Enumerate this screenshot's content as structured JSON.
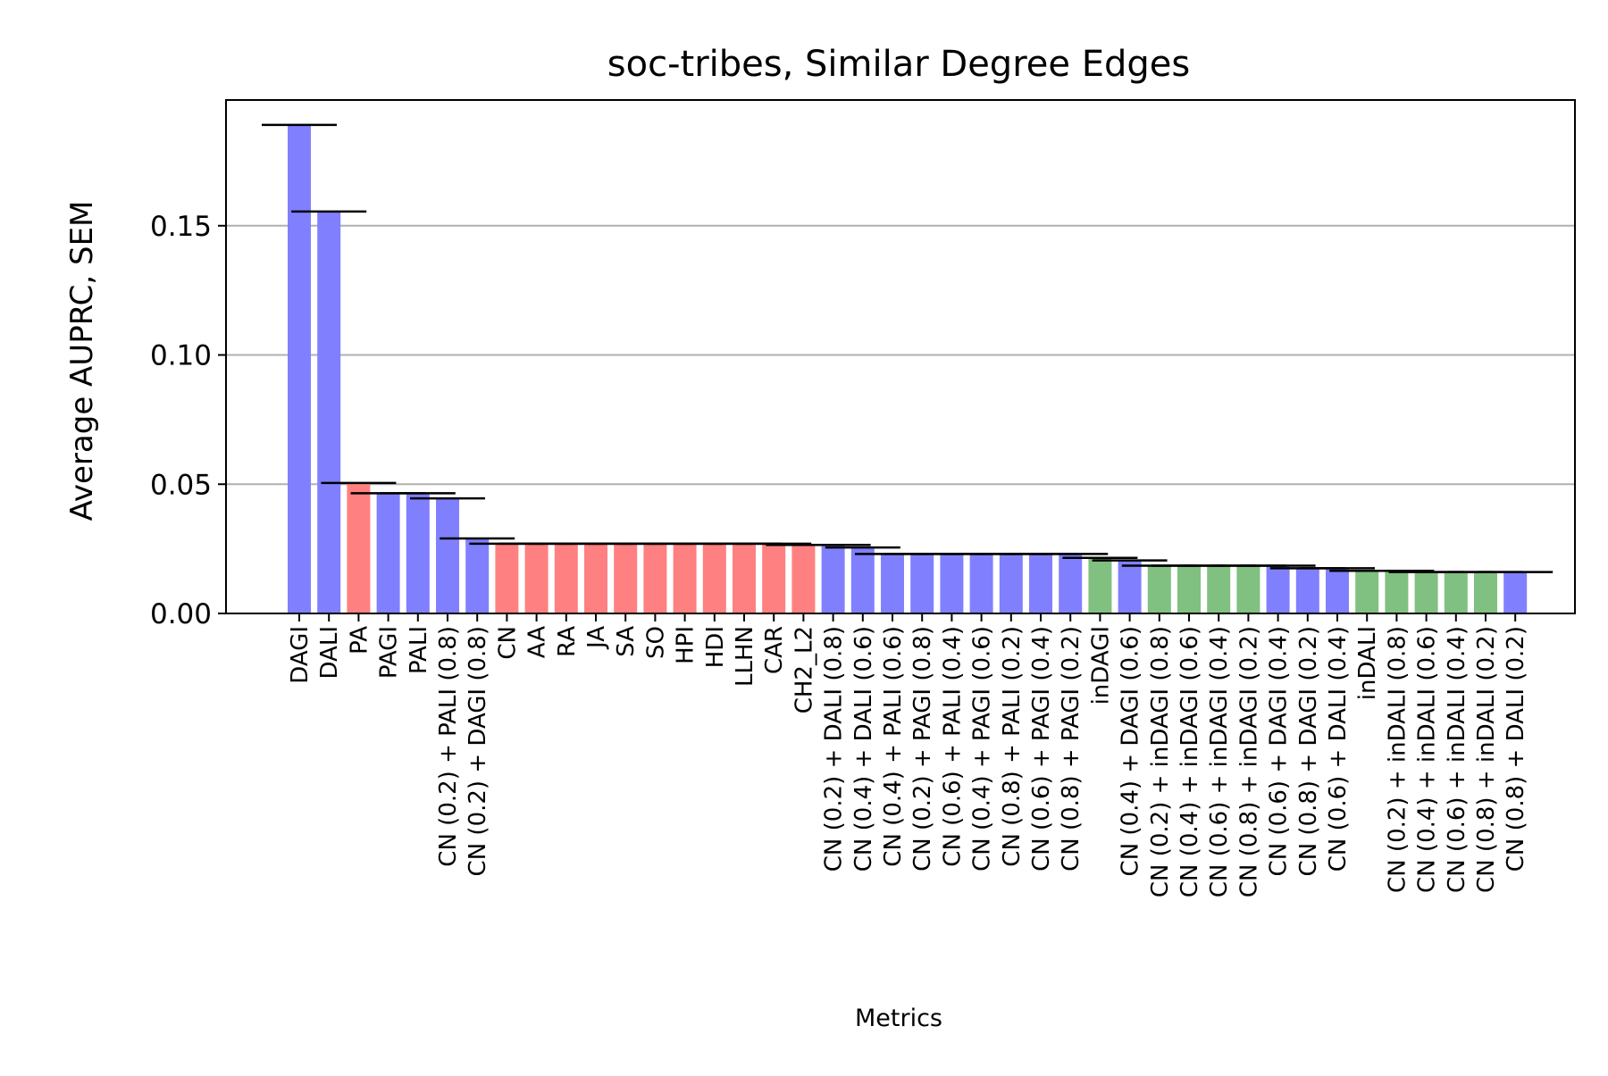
{
  "chart_data": {
    "type": "bar",
    "title": "soc-tribes, Similar Degree Edges",
    "xlabel": "Metrics",
    "ylabel": "Average AUPRC, SEM",
    "ylim": [
      0,
      0.19
    ],
    "yticks": [
      "0.00",
      "0.05",
      "0.10",
      "0.15"
    ],
    "ytick_values": [
      0,
      0.05,
      0.1,
      0.15
    ],
    "grid": "horizontal",
    "colors": {
      "blue": "#8080ff",
      "red": "#ff8080",
      "green": "#80c080",
      "grid": "#b0b0b0",
      "errorbar": "#000000"
    },
    "categories": [
      "DAGI",
      "DALI",
      "PA",
      "PAGI",
      "PALI",
      "CN (0.2) + PALI (0.8)",
      "CN (0.2) + DAGI (0.8)",
      "CN",
      "AA",
      "RA",
      "JA",
      "SA",
      "SO",
      "HPI",
      "HDI",
      "LLHN",
      "CAR",
      "CH2_L2",
      "CN (0.2) + DALI (0.8)",
      "CN (0.4) + DALI (0.6)",
      "CN (0.4) + PALI (0.6)",
      "CN (0.2) + PAGI (0.8)",
      "CN (0.6) + PALI (0.4)",
      "CN (0.4) + PAGI (0.6)",
      "CN (0.8) + PALI (0.2)",
      "CN (0.6) + PAGI (0.4)",
      "CN (0.8) + PAGI (0.2)",
      "inDAGI",
      "CN (0.4) + DAGI (0.6)",
      "CN (0.2) + inDAGI (0.8)",
      "CN (0.4) + inDAGI (0.6)",
      "CN (0.6) + inDAGI (0.4)",
      "CN (0.8) + inDAGI (0.2)",
      "CN (0.6) + DAGI (0.4)",
      "CN (0.8) + DAGI (0.2)",
      "CN (0.6) + DALI (0.4)",
      "inDALI",
      "CN (0.2) + inDALI (0.8)",
      "CN (0.4) + inDALI (0.6)",
      "CN (0.6) + inDALI (0.4)",
      "CN (0.8) + inDALI (0.2)",
      "CN (0.8) + DALI (0.2)"
    ],
    "values": [
      0.189,
      0.1555,
      0.0505,
      0.0465,
      0.0465,
      0.0445,
      0.029,
      0.027,
      0.027,
      0.027,
      0.027,
      0.027,
      0.027,
      0.027,
      0.027,
      0.027,
      0.027,
      0.0265,
      0.0265,
      0.0255,
      0.023,
      0.023,
      0.023,
      0.023,
      0.023,
      0.023,
      0.023,
      0.0215,
      0.0205,
      0.0185,
      0.0185,
      0.0185,
      0.0185,
      0.0185,
      0.0175,
      0.0175,
      0.0165,
      0.0165,
      0.016,
      0.016,
      0.016,
      0.016
    ],
    "bar_colors": [
      "blue",
      "blue",
      "red",
      "blue",
      "blue",
      "blue",
      "blue",
      "red",
      "red",
      "red",
      "red",
      "red",
      "red",
      "red",
      "red",
      "red",
      "red",
      "red",
      "blue",
      "blue",
      "blue",
      "blue",
      "blue",
      "blue",
      "blue",
      "blue",
      "blue",
      "green",
      "blue",
      "green",
      "green",
      "green",
      "green",
      "blue",
      "blue",
      "blue",
      "green",
      "green",
      "green",
      "green",
      "green",
      "blue"
    ]
  }
}
